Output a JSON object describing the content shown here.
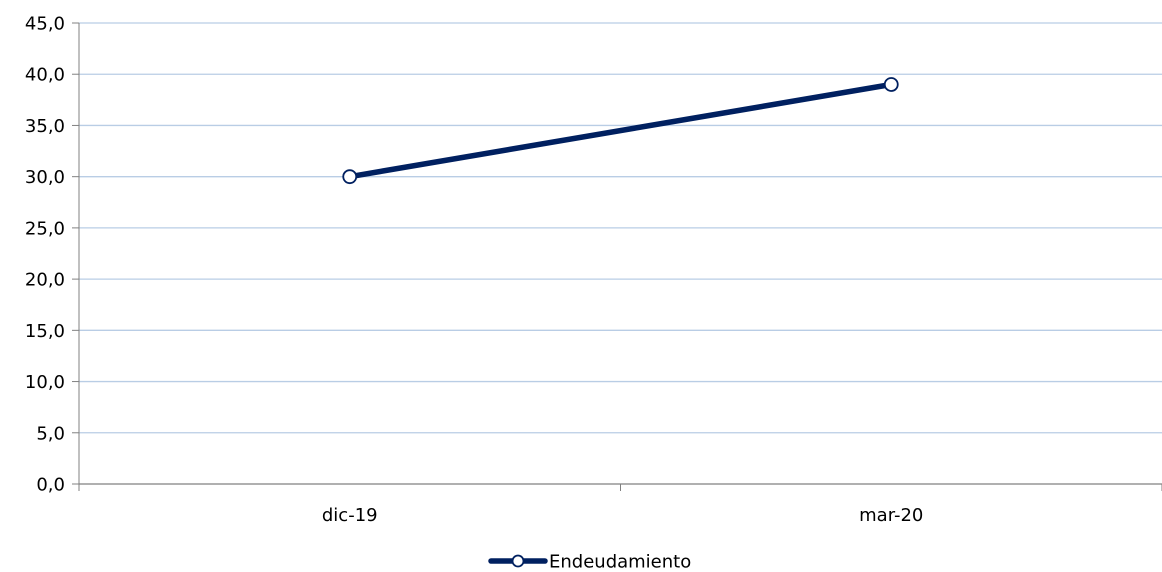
{
  "chart_data": {
    "type": "line",
    "title": "",
    "xlabel": "",
    "ylabel": "",
    "categories": [
      "dic-19",
      "mar-20"
    ],
    "series": [
      {
        "name": "Endeudamiento",
        "values": [
          30.0,
          39.0
        ],
        "color": "#002060",
        "marker": "open-circle"
      }
    ],
    "ylim": [
      0,
      45
    ],
    "yticks": [
      0,
      5,
      10,
      15,
      20,
      25,
      30,
      35,
      40,
      45
    ],
    "ytick_labels": [
      "0,0",
      "5,0",
      "10,0",
      "15,0",
      "20,0",
      "25,0",
      "30,0",
      "35,0",
      "40,0",
      "45,0"
    ],
    "grid": true,
    "grid_color": "#b9cde5",
    "axis_color": "#808080",
    "legend_position": "bottom-center"
  }
}
